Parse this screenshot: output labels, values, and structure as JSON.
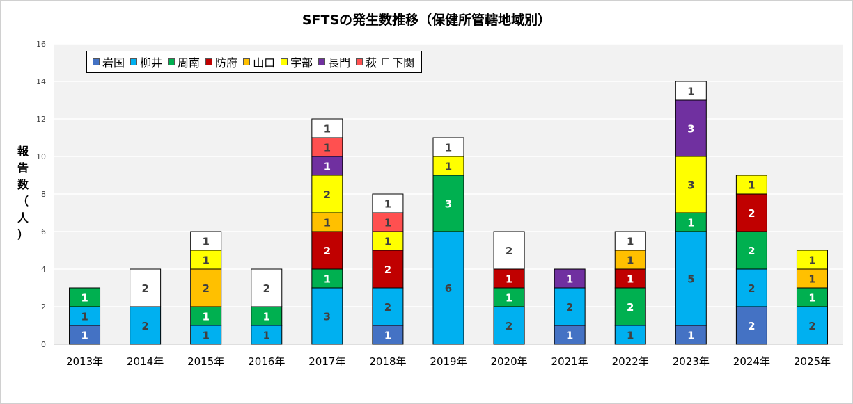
{
  "chart_data": {
    "type": "bar",
    "stacked": true,
    "title": "SFTSの発生数推移（保健所管轄地域別）",
    "ylabel": "報告数（人）",
    "xlabel": "",
    "ylim": [
      0,
      16
    ],
    "yticks": [
      0,
      2,
      4,
      6,
      8,
      10,
      12,
      14,
      16
    ],
    "grid": true,
    "legend_position": "top-left",
    "categories": [
      "2013年",
      "2014年",
      "2015年",
      "2016年",
      "2017年",
      "2018年",
      "2019年",
      "2020年",
      "2021年",
      "2022年",
      "2023年",
      "2024年",
      "2025年"
    ],
    "series": [
      {
        "name": "岩国",
        "color": "#4472c4",
        "label_color": "#ffffff",
        "values": [
          1,
          0,
          0,
          0,
          0,
          1,
          0,
          0,
          1,
          0,
          1,
          2,
          0
        ]
      },
      {
        "name": "柳井",
        "color": "#00b0f0",
        "label_color": "#404040",
        "values": [
          1,
          2,
          1,
          1,
          3,
          2,
          6,
          2,
          2,
          1,
          5,
          2,
          2
        ]
      },
      {
        "name": "周南",
        "color": "#00b050",
        "label_color": "#ffffff",
        "values": [
          1,
          0,
          1,
          1,
          1,
          0,
          3,
          1,
          0,
          2,
          1,
          2,
          1
        ]
      },
      {
        "name": "防府",
        "color": "#c00000",
        "label_color": "#ffffff",
        "values": [
          0,
          0,
          0,
          0,
          2,
          2,
          0,
          1,
          0,
          1,
          0,
          2,
          0
        ]
      },
      {
        "name": "山口",
        "color": "#ffc000",
        "label_color": "#404040",
        "values": [
          0,
          0,
          2,
          0,
          1,
          0,
          0,
          0,
          0,
          1,
          0,
          0,
          1
        ]
      },
      {
        "name": "宇部",
        "color": "#ffff00",
        "label_color": "#404040",
        "values": [
          0,
          0,
          1,
          0,
          2,
          1,
          1,
          0,
          0,
          0,
          3,
          1,
          1
        ]
      },
      {
        "name": "長門",
        "color": "#7030a0",
        "label_color": "#ffffff",
        "values": [
          0,
          0,
          0,
          0,
          1,
          0,
          0,
          0,
          1,
          0,
          3,
          0,
          0
        ]
      },
      {
        "name": "萩",
        "color": "#ff5050",
        "label_color": "#404040",
        "values": [
          0,
          0,
          0,
          0,
          1,
          1,
          0,
          0,
          0,
          0,
          0,
          0,
          0
        ]
      },
      {
        "name": "下関",
        "color": "#ffffff",
        "label_color": "#404040",
        "values": [
          0,
          2,
          1,
          2,
          1,
          1,
          1,
          2,
          0,
          1,
          1,
          0,
          0
        ]
      }
    ]
  }
}
